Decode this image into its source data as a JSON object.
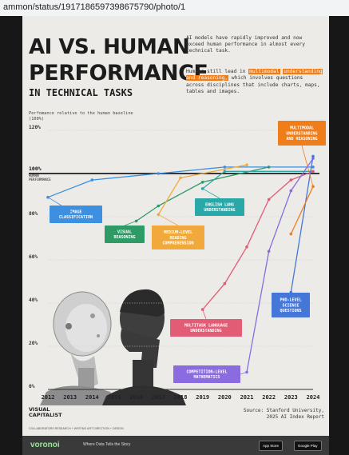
{
  "browser": {
    "url": "ammon/status/1917186597398675790/photo/1"
  },
  "poster": {
    "title_line1": "AI VS. HUMAN",
    "title_line2": "PERFORMANCE",
    "subtitle": "IN TECHNICAL TASKS",
    "intro_p1": "AI models have rapidly improved and now exceed human performance in almost every technical task.",
    "intro_p2_a": "Humans still lead in ",
    "intro_p2_hl1": "multimodal",
    "intro_p2_hl2": "understanding and reasoning,",
    "intro_p2_b": " which involves questions across disciplines that include charts, maps, tables and images.",
    "y_caption": "Perfomance relative to the human baseline (100%)",
    "human_label_1": "100%",
    "human_label_2": "HUMAN",
    "human_label_3": "PERFORMANCE",
    "logo_line1": "VISUAL",
    "logo_line2": "CAPITALIST",
    "source_line1": "Source: Stanford University,",
    "source_line2": "2025 AI Index Report",
    "credits": "COLLABORATORS   RESEARCH + WRITING   ART DIRECTION + DESIGN",
    "footer_brand": "voronoi",
    "footer_tagline": "Where Data Tells the Story",
    "app_store": "App Store",
    "google_play": "Google Play"
  },
  "chart_data": {
    "type": "line",
    "x": [
      "2012",
      "2013",
      "2014",
      "2015",
      "2016",
      "2017",
      "2018",
      "2019",
      "2020",
      "2021",
      "2022",
      "2023",
      "2024"
    ],
    "yticks": [
      "0%",
      "20%",
      "40%",
      "60%",
      "80%",
      "100%",
      "120%"
    ],
    "ylim": [
      0,
      120
    ],
    "baseline": 100,
    "series": [
      {
        "name": "IMAGE CLASSIFICATION",
        "color": "#3d8fe0",
        "points": [
          [
            2012,
            89
          ],
          [
            2014,
            97
          ],
          [
            2017,
            100
          ],
          [
            2020,
            103
          ],
          [
            2024,
            103
          ]
        ]
      },
      {
        "name": "VISUAL REASONING",
        "color": "#2e9a66",
        "points": [
          [
            2016,
            78
          ],
          [
            2017,
            85
          ],
          [
            2019,
            96
          ],
          [
            2022,
            103
          ]
        ]
      },
      {
        "name": "MEDIUM-LEVEL READING COMPREHENSION",
        "color": "#f0a93a",
        "points": [
          [
            2017,
            81
          ],
          [
            2018,
            98
          ],
          [
            2021,
            104
          ]
        ]
      },
      {
        "name": "ENGLISH LANG UNDERSTANDING",
        "color": "#2aa8a8",
        "points": [
          [
            2019,
            93
          ],
          [
            2020,
            101
          ],
          [
            2024,
            101
          ]
        ]
      },
      {
        "name": "MULTITASK LANGUAGE UNDERSTANDING",
        "color": "#e15c74",
        "points": [
          [
            2019,
            37
          ],
          [
            2020,
            49
          ],
          [
            2021,
            66
          ],
          [
            2022,
            88
          ],
          [
            2023,
            97
          ],
          [
            2024,
            101
          ]
        ]
      },
      {
        "name": "COMPETITION-LEVEL MATHEMATICS",
        "color": "#8b6be0",
        "points": [
          [
            2021,
            8
          ],
          [
            2022,
            64
          ],
          [
            2023,
            92
          ],
          [
            2024,
            107
          ]
        ]
      },
      {
        "name": "PHD-LEVEL SCIENCE QUESTIONS",
        "color": "#4577d9",
        "points": [
          [
            2023,
            45
          ],
          [
            2024,
            108
          ]
        ]
      },
      {
        "name": "MULTIMODAL UNDERSTANDING AND REASONING",
        "color": "#ef7d1a",
        "points": [
          [
            2023,
            72
          ],
          [
            2024,
            94
          ]
        ]
      }
    ],
    "labels": [
      {
        "lines": [
          "IMAGE",
          "CLASSIFICATION"
        ],
        "color": "#3d8fe0"
      },
      {
        "lines": [
          "VISUAL",
          "REASONING"
        ],
        "color": "#2e9a66"
      },
      {
        "lines": [
          "MEDIUM-LEVEL",
          "READING",
          "COMPREHENSION"
        ],
        "color": "#f0a93a"
      },
      {
        "lines": [
          "ENGLISH LANG",
          "UNDERSTANDING"
        ],
        "color": "#2aa8a8"
      },
      {
        "lines": [
          "MULTITASK LANGUAGE",
          "UNDERSTANDING"
        ],
        "color": "#e15c74"
      },
      {
        "lines": [
          "COMPETITION-LEVEL",
          "MATHEMATICS"
        ],
        "color": "#8b6be0"
      },
      {
        "lines": [
          "PHD-LEVEL",
          "SCIENCE",
          "QUESTIONS"
        ],
        "color": "#4577d9"
      },
      {
        "lines": [
          "MULTIMODAL",
          "UNDERSTANDING",
          "AND REASONING"
        ],
        "color": "#ef7d1a"
      }
    ]
  }
}
